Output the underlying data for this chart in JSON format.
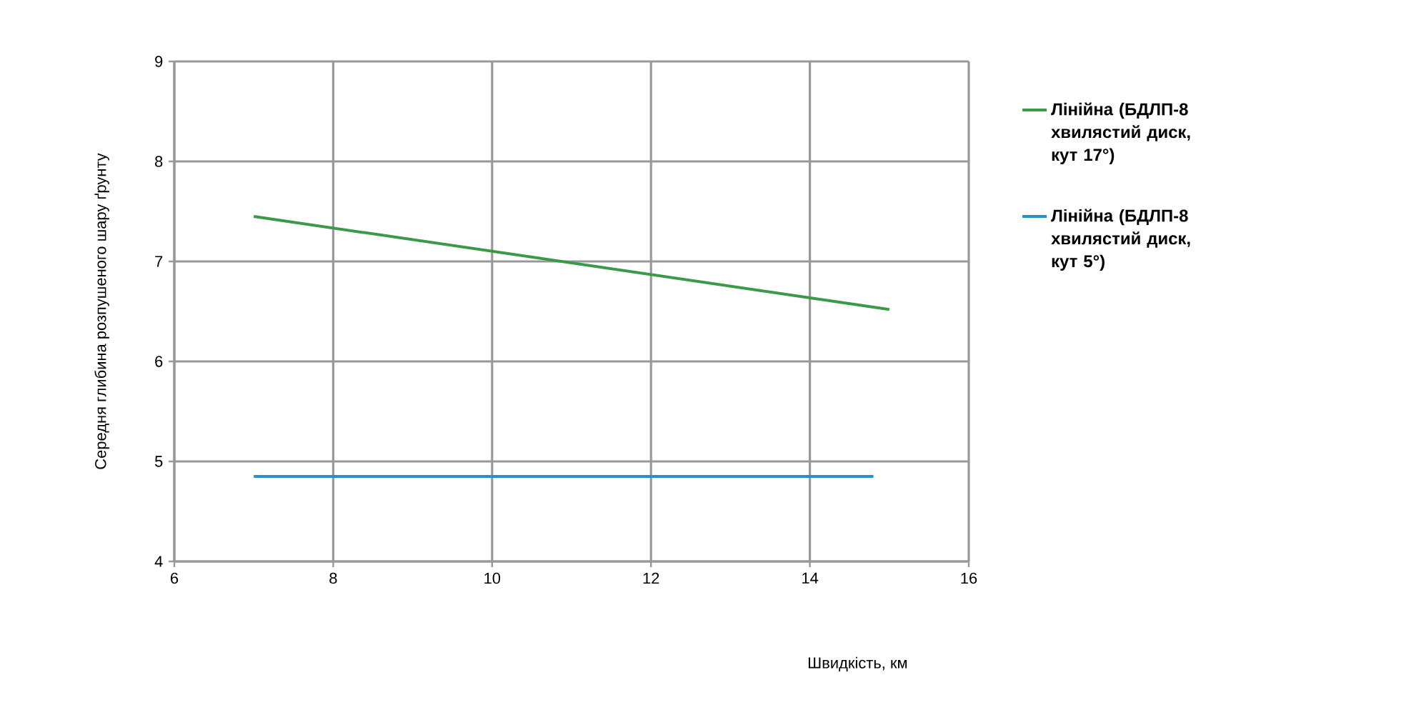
{
  "chart_data": {
    "type": "line",
    "xlabel": "Швидкість, км",
    "ylabel": "Середня глибина розпушеного шару ґрунту",
    "series": [
      {
        "name": "Лінійна (БДЛП-8 хвилястий диск, кут 17°)",
        "color": "#3a9a48",
        "x": [
          7,
          15
        ],
        "values": [
          7.45,
          6.52
        ]
      },
      {
        "name": "Лінійна (БДЛП-8 хвилястий диск, кут 5°)",
        "color": "#2a8fd0",
        "x": [
          7,
          14.8
        ],
        "values": [
          4.85,
          4.85
        ]
      }
    ],
    "xlim": [
      6,
      16
    ],
    "xticks": [
      6,
      8,
      10,
      12,
      14,
      16
    ],
    "ylim": [
      4,
      9
    ],
    "yticks": [
      4,
      5,
      6,
      7,
      8,
      9
    ],
    "grid": true,
    "legend": "right",
    "marker": "none",
    "line_style": "solid"
  }
}
